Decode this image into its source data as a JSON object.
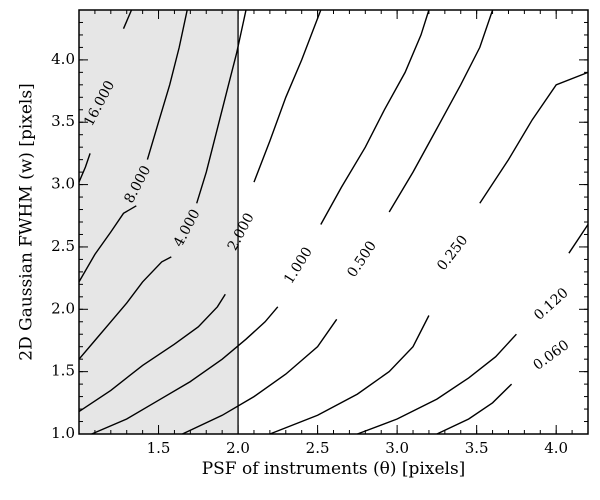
{
  "chart_data": {
    "type": "line",
    "subtype": "contour",
    "title": "",
    "xlabel": "PSF of instruments (θ) [pixels]",
    "ylabel": "2D Gaussian FWHM (w) [pixels]",
    "xlim": [
      1.0,
      4.2
    ],
    "ylim": [
      1.0,
      4.4
    ],
    "x_ticks": [
      1.5,
      2.0,
      2.5,
      3.0,
      3.5,
      4.0
    ],
    "x_tick_labels": [
      "1.5",
      "2.0",
      "2.5",
      "3.0",
      "3.5",
      "4.0"
    ],
    "y_ticks": [
      1.0,
      1.5,
      2.0,
      2.5,
      3.0,
      3.5,
      4.0
    ],
    "y_tick_labels": [
      "1.0",
      "1.5",
      "2.0",
      "2.5",
      "3.0",
      "3.5",
      "4.0"
    ],
    "grid": false,
    "legend": "none",
    "colors": {
      "line": "#000000",
      "shaded": "#e6e6e6"
    },
    "shaded_region": {
      "x": [
        1.0,
        2.0
      ],
      "vertical_line_x": 2.0
    },
    "series": [
      {
        "label": "16.000",
        "label_pos": [
          1.13,
          3.65
        ],
        "label_angle": -62,
        "points": [
          [
            1.28,
            4.25
          ],
          [
            1.33,
            4.4
          ]
        ]
      },
      {
        "label": "16.000",
        "label_pos": [
          1.13,
          3.65
        ],
        "label_angle": -62,
        "label_hidden": true,
        "points": [
          [
            1.0,
            3.02
          ],
          [
            1.04,
            3.14
          ],
          [
            1.07,
            3.25
          ]
        ]
      },
      {
        "label": "8.000",
        "label_pos": [
          1.37,
          3.0
        ],
        "label_angle": -62,
        "points": [
          [
            1.0,
            2.22
          ],
          [
            1.1,
            2.44
          ],
          [
            1.2,
            2.62
          ],
          [
            1.28,
            2.77
          ],
          [
            1.36,
            2.83
          ]
        ]
      },
      {
        "label": "8.000",
        "label_pos": [
          1.37,
          3.0
        ],
        "label_angle": -62,
        "label_hidden": true,
        "points": [
          [
            1.43,
            3.2
          ],
          [
            1.5,
            3.5
          ],
          [
            1.57,
            3.8
          ],
          [
            1.63,
            4.1
          ],
          [
            1.68,
            4.4
          ]
        ]
      },
      {
        "label": "4.000",
        "label_pos": [
          1.68,
          2.65
        ],
        "label_angle": -62,
        "points": [
          [
            1.0,
            1.6
          ],
          [
            1.1,
            1.75
          ],
          [
            1.2,
            1.9
          ],
          [
            1.3,
            2.05
          ],
          [
            1.4,
            2.22
          ],
          [
            1.52,
            2.38
          ],
          [
            1.58,
            2.42
          ]
        ]
      },
      {
        "label": "4.000",
        "label_pos": [
          1.68,
          2.65
        ],
        "label_angle": -62,
        "label_hidden": true,
        "points": [
          [
            1.74,
            2.85
          ],
          [
            1.8,
            3.1
          ],
          [
            1.88,
            3.5
          ],
          [
            1.94,
            3.8
          ],
          [
            1.99,
            4.05
          ],
          [
            2.05,
            4.4
          ]
        ]
      },
      {
        "label": "2.000",
        "label_pos": [
          2.02,
          2.62
        ],
        "label_angle": -62,
        "points": [
          [
            1.0,
            1.18
          ],
          [
            1.2,
            1.35
          ],
          [
            1.4,
            1.55
          ],
          [
            1.6,
            1.72
          ],
          [
            1.75,
            1.86
          ],
          [
            1.87,
            2.02
          ],
          [
            1.92,
            2.12
          ]
        ]
      },
      {
        "label": "2.000",
        "label_pos": [
          2.02,
          2.62
        ],
        "label_angle": -62,
        "label_hidden": true,
        "points": [
          [
            2.1,
            3.02
          ],
          [
            2.2,
            3.35
          ],
          [
            2.3,
            3.7
          ],
          [
            2.4,
            4.0
          ],
          [
            2.52,
            4.4
          ]
        ]
      },
      {
        "label": "1.000",
        "label_pos": [
          2.38,
          2.35
        ],
        "label_angle": -58,
        "points": [
          [
            1.08,
            1.0
          ],
          [
            1.3,
            1.12
          ],
          [
            1.5,
            1.27
          ],
          [
            1.7,
            1.42
          ],
          [
            1.9,
            1.6
          ],
          [
            2.05,
            1.76
          ],
          [
            2.17,
            1.9
          ],
          [
            2.25,
            2.02
          ]
        ]
      },
      {
        "label": "1.000",
        "label_pos": [
          2.38,
          2.35
        ],
        "label_angle": -58,
        "label_hidden": true,
        "points": [
          [
            2.52,
            2.68
          ],
          [
            2.65,
            2.98
          ],
          [
            2.8,
            3.3
          ],
          [
            2.92,
            3.6
          ],
          [
            3.05,
            3.9
          ],
          [
            3.15,
            4.2
          ],
          [
            3.2,
            4.4
          ]
        ]
      },
      {
        "label": "0.500",
        "label_pos": [
          2.78,
          2.4
        ],
        "label_angle": -56,
        "points": [
          [
            1.65,
            1.0
          ],
          [
            1.9,
            1.15
          ],
          [
            2.1,
            1.3
          ],
          [
            2.3,
            1.48
          ],
          [
            2.5,
            1.7
          ],
          [
            2.62,
            1.92
          ]
        ]
      },
      {
        "label": "0.500",
        "label_pos": [
          2.78,
          2.4
        ],
        "label_angle": -56,
        "label_hidden": true,
        "points": [
          [
            2.95,
            2.78
          ],
          [
            3.1,
            3.1
          ],
          [
            3.25,
            3.45
          ],
          [
            3.4,
            3.8
          ],
          [
            3.52,
            4.1
          ],
          [
            3.6,
            4.4
          ]
        ]
      },
      {
        "label": "0.250",
        "label_pos": [
          3.35,
          2.45
        ],
        "label_angle": -52,
        "points": [
          [
            2.2,
            1.0
          ],
          [
            2.5,
            1.15
          ],
          [
            2.75,
            1.32
          ],
          [
            2.95,
            1.5
          ],
          [
            3.1,
            1.7
          ],
          [
            3.2,
            1.95
          ]
        ]
      },
      {
        "label": "0.250",
        "label_pos": [
          3.35,
          2.45
        ],
        "label_angle": -52,
        "label_hidden": true,
        "points": [
          [
            3.52,
            2.85
          ],
          [
            3.7,
            3.2
          ],
          [
            3.85,
            3.52
          ],
          [
            4.0,
            3.8
          ],
          [
            4.2,
            3.9
          ]
        ]
      },
      {
        "label": "0.120",
        "label_pos": [
          3.97,
          2.04
        ],
        "label_angle": -42,
        "points": [
          [
            2.75,
            1.0
          ],
          [
            3.0,
            1.12
          ],
          [
            3.25,
            1.28
          ],
          [
            3.45,
            1.45
          ],
          [
            3.62,
            1.62
          ],
          [
            3.75,
            1.8
          ]
        ]
      },
      {
        "label": "0.120",
        "label_pos": [
          3.97,
          2.04
        ],
        "label_angle": -42,
        "label_hidden": true,
        "points": [
          [
            4.08,
            2.45
          ],
          [
            4.2,
            2.68
          ]
        ]
      },
      {
        "label": "0.060",
        "label_pos": [
          3.97,
          1.63
        ],
        "label_angle": -36,
        "points": [
          [
            3.25,
            1.0
          ],
          [
            3.45,
            1.12
          ],
          [
            3.6,
            1.25
          ],
          [
            3.72,
            1.4
          ]
        ]
      },
      {
        "label": "0.060",
        "label_pos": [
          3.97,
          1.63
        ],
        "label_angle": -36,
        "label_hidden": true,
        "points": [
          [
            4.2,
            1.9
          ]
        ]
      }
    ]
  }
}
